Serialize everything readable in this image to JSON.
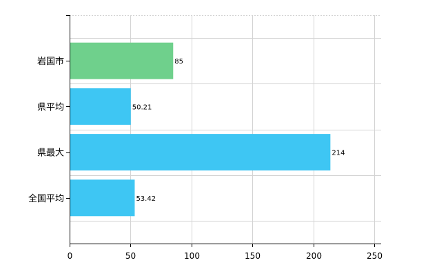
{
  "chart_data": {
    "type": "bar",
    "orientation": "horizontal",
    "categories": [
      "岩国市",
      "県平均",
      "県最大",
      "全国平均"
    ],
    "values": [
      85,
      50.21,
      214,
      53.42
    ],
    "data_labels": [
      "85",
      "50.21",
      "214",
      "53.42"
    ],
    "colors": [
      "#6fd08c",
      "#3ec6f3",
      "#3ec6f3",
      "#3ec6f3"
    ],
    "xlim": [
      0,
      250
    ],
    "xticks": [
      0,
      50,
      100,
      150,
      200,
      250
    ],
    "grid": true,
    "title": "",
    "xlabel": "",
    "ylabel": ""
  }
}
